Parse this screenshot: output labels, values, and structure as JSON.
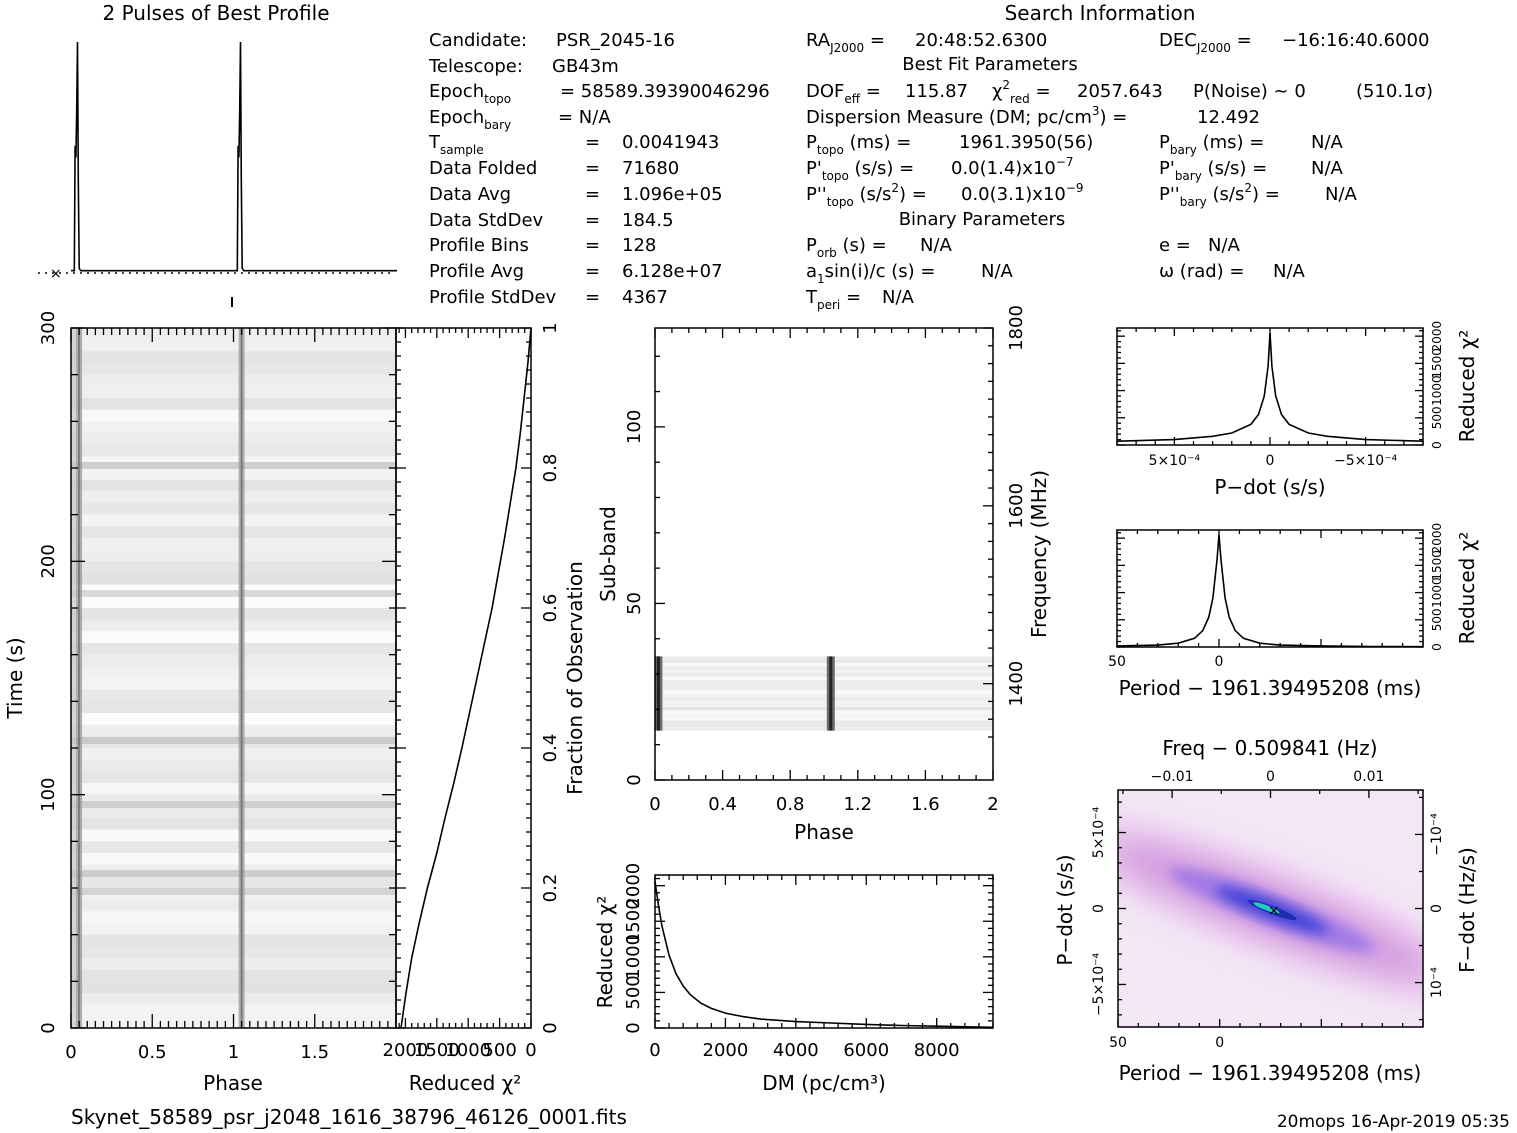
{
  "profile_title": "2 Pulses of Best Profile",
  "search_info_title": "Search Information",
  "candidate_info": [
    {
      "label": "Candidate:",
      "value": "PSR_2045-16"
    },
    {
      "label": "Telescope:",
      "value": "GB43m"
    },
    {
      "label": "Epoch_topo",
      "value": "= 58589.39390046296"
    },
    {
      "label": "Epoch_bary",
      "value": "= N/A"
    },
    {
      "label": "T_sample",
      "value": "0.0041943"
    },
    {
      "label": "Data Folded",
      "value": "71680"
    },
    {
      "label": "Data Avg",
      "value": "1.096e+05"
    },
    {
      "label": "Data StdDev",
      "value": "184.5"
    },
    {
      "label": "Profile Bins",
      "value": "128"
    },
    {
      "label": "Profile Avg",
      "value": "6.128e+07"
    },
    {
      "label": "Profile StdDev",
      "value": "4367"
    }
  ],
  "fit_params": {
    "ra": "20:48:52.6300",
    "dec": "−16:16:40.6000",
    "best_fit_title": "Best Fit Parameters",
    "dof_eff": "115.87",
    "chi2_red": "2057.643",
    "p_noise": "P(Noise) ~ 0",
    "sigma": "(510.1σ)",
    "dm": "12.492",
    "p_topo": "1961.3950(56)",
    "p_bary": "N/A",
    "pd_topo": "0.0(1.4)x10",
    "pd_topo_exp": "−7",
    "pd_bary": "N/A",
    "pdd_topo": "0.0(3.1)x10",
    "pdd_topo_exp": "−9",
    "pdd_bary": "N/A",
    "binary_title": "Binary Parameters",
    "p_orb": "N/A",
    "a1sini": "N/A",
    "t_peri": "N/A",
    "e": "N/A",
    "omega": "N/A"
  },
  "footer": {
    "filename": "Skynet_58589_psr_j2048_1616_38796_46126_0001.fits",
    "stamp": "20mops 16-Apr-2019 05:35"
  },
  "chart_data": [
    {
      "type": "line",
      "name": "profile",
      "title": "2 Pulses of Best Profile",
      "x": [
        0,
        0.02,
        0.025,
        0.03,
        0.035,
        0.04,
        0.045,
        0.05,
        0.06,
        0.08,
        1.0,
        1.02,
        1.025,
        1.03,
        1.035,
        1.04,
        1.045,
        1.05,
        1.06,
        1.08,
        2.0
      ],
      "y": [
        0.01,
        0.01,
        0.55,
        0.5,
        0.7,
        1.0,
        0.4,
        0.02,
        0.01,
        0.01,
        0.01,
        0.01,
        0.55,
        0.5,
        0.7,
        1.0,
        0.4,
        0.02,
        0.01,
        0.01,
        0.01
      ],
      "xlim": [
        0,
        2
      ]
    },
    {
      "type": "heatmap",
      "name": "time-phase",
      "xlabel": "Phase",
      "ylabel": "Time (s)",
      "xticks": [
        "0",
        "0.5",
        "1",
        "1.5"
      ],
      "yticks": [
        "0",
        "100",
        "200",
        "300"
      ],
      "xlim": [
        0,
        2
      ],
      "ylim": [
        0,
        300
      ],
      "pulse_phase": [
        0.05,
        1.05
      ]
    },
    {
      "type": "line",
      "name": "time-chi2",
      "xlabel": "Reduced χ²",
      "ylabel": "Fraction of Observation",
      "xticks": [
        "2000",
        "1500",
        "1000",
        "500",
        "0"
      ],
      "yticks": [
        "0",
        "0.2",
        "0.4",
        "0.6",
        "0.8",
        "1"
      ],
      "x": [
        2070,
        1990,
        1900,
        1780,
        1650,
        1500,
        1370,
        1230,
        1100,
        980,
        860,
        740,
        620,
        520,
        420,
        330,
        240,
        170,
        110,
        50,
        0
      ],
      "y": [
        0,
        0.05,
        0.1,
        0.15,
        0.2,
        0.25,
        0.3,
        0.35,
        0.4,
        0.45,
        0.5,
        0.55,
        0.6,
        0.65,
        0.7,
        0.75,
        0.8,
        0.85,
        0.9,
        0.95,
        1.0
      ]
    },
    {
      "type": "heatmap",
      "name": "subband-phase",
      "xlabel": "Phase",
      "ylabel": "Sub-band",
      "y2label": "Frequency (MHz)",
      "xticks": [
        "0",
        "0.4",
        "0.8",
        "1.2",
        "1.6",
        "2"
      ],
      "yticks": [
        "0",
        "50",
        "100"
      ],
      "y2ticks": [
        "1400",
        "1600",
        "1800"
      ],
      "xlim": [
        0,
        2
      ],
      "ylim": [
        0,
        128
      ],
      "band_subbands": [
        14,
        35
      ],
      "pulse_phase": [
        0.02,
        1.04
      ]
    },
    {
      "type": "line",
      "name": "dm-chi2",
      "xlabel": "DM (pc/cm³)",
      "ylabel": "Reduced χ²",
      "xticks": [
        "0",
        "2000",
        "4000",
        "6000",
        "8000"
      ],
      "yticks": [
        "0",
        "500",
        "1000",
        "1500",
        "2000"
      ],
      "xlim": [
        0,
        9600
      ],
      "ylim": [
        0,
        2150
      ],
      "x": [
        0,
        100,
        200,
        400,
        600,
        800,
        1000,
        1300,
        1600,
        2000,
        2500,
        3000,
        4000,
        5000,
        6000,
        7000,
        8000,
        9000,
        9600
      ],
      "y": [
        2060,
        1720,
        1430,
        1020,
        760,
        590,
        470,
        350,
        275,
        210,
        160,
        125,
        90,
        70,
        50,
        35,
        25,
        15,
        10
      ]
    },
    {
      "type": "line",
      "name": "pdot-chi2",
      "xlabel": "P−dot (s/s)",
      "ylabel": "Reduced χ²",
      "xticks": [
        "5×10⁻⁴",
        "0",
        "−5×10⁻⁴"
      ],
      "yticks": [
        "0",
        "500",
        "1000",
        "1500",
        "2000"
      ],
      "xlim": [
        0.0008,
        -0.0008
      ],
      "ylim": [
        0,
        2150
      ],
      "x": [
        0.0008,
        0.0005,
        0.0003,
        0.0002,
        0.0001,
        6e-05,
        3e-05,
        1e-05,
        0,
        -1e-05,
        -3e-05,
        -6e-05,
        -0.0001,
        -0.0002,
        -0.0003,
        -0.0005,
        -0.0008
      ],
      "y": [
        70,
        100,
        160,
        220,
        380,
        560,
        900,
        1450,
        2060,
        1450,
        900,
        560,
        380,
        220,
        160,
        100,
        70
      ]
    },
    {
      "type": "line",
      "name": "period-chi2",
      "xlabel": "Period − 1961.39495208 (ms)",
      "ylabel": "Reduced χ²",
      "xticks": [
        "50",
        "0"
      ],
      "yticks": [
        "0",
        "500",
        "1000",
        "1500",
        "2000"
      ],
      "xlim": [
        50,
        -100
      ],
      "ylim": [
        0,
        2150
      ],
      "x": [
        50,
        30,
        20,
        12,
        8,
        5,
        3,
        1,
        0,
        -1,
        -3,
        -5,
        -8,
        -12,
        -20,
        -30,
        -50,
        -75,
        -100
      ],
      "y": [
        20,
        35,
        70,
        160,
        300,
        550,
        900,
        1600,
        2060,
        1600,
        900,
        550,
        300,
        160,
        70,
        35,
        20,
        10,
        5
      ]
    },
    {
      "type": "heatmap",
      "name": "period-pdot",
      "xlabel": "Period − 1961.39495208 (ms)",
      "ylabel": "P−dot (s/s)",
      "x2label": "Freq − 0.509841 (Hz)",
      "y2label": "F−dot (Hz/s)",
      "xticks": [
        "50",
        "0"
      ],
      "yticks": [
        "5×10⁻⁴",
        "0",
        "−5×10⁻⁴"
      ],
      "x2ticks": [
        "−0.01",
        "0",
        "0.01"
      ],
      "y2ticks": [
        "−10⁻⁴",
        "0",
        "10⁻⁴"
      ]
    }
  ]
}
